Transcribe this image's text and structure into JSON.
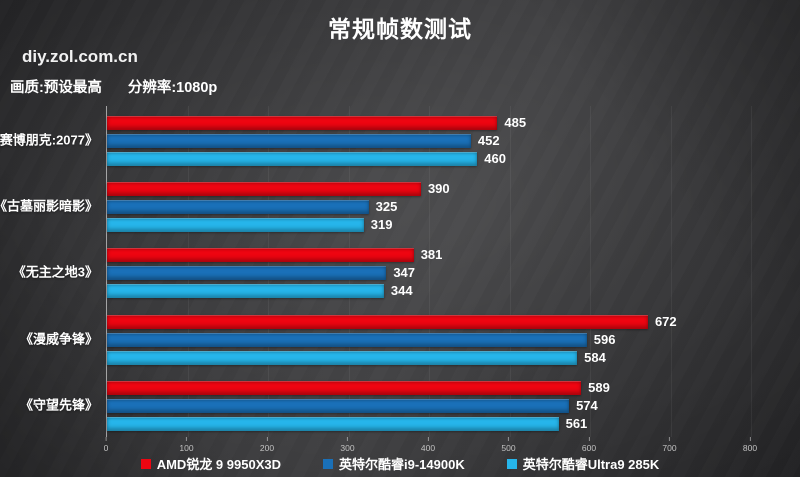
{
  "page": {
    "title": "常规帧数测试",
    "watermark": "diy.zol.com.cn",
    "settings": {
      "quality": "画质:预设最高",
      "resolution": "分辨率:1080p"
    }
  },
  "chart_data": {
    "type": "bar",
    "orientation": "horizontal",
    "title": "常规帧数测试",
    "categories": [
      "《赛博朋克:2077》",
      "《古墓丽影暗影》",
      "《无主之地3》",
      "《漫威争锋》",
      "《守望先锋》"
    ],
    "series": [
      {
        "name": "AMD锐龙 9 9950X3D",
        "color": "#ee0511",
        "values": [
          485,
          390,
          381,
          672,
          589
        ]
      },
      {
        "name": "英特尔酷睿i9-14900K",
        "color": "#1a70b8",
        "values": [
          452,
          325,
          347,
          596,
          574
        ]
      },
      {
        "name": "英特尔酷睿Ultra9 285K",
        "color": "#26b5ea",
        "values": [
          460,
          319,
          344,
          584,
          561
        ]
      }
    ],
    "xlim": [
      0,
      800
    ],
    "x_ticks": [
      0,
      100,
      200,
      300,
      400,
      500,
      600,
      700,
      800
    ],
    "grid": "vertical-faint",
    "legend_position": "bottom",
    "value_labels": "outside-end"
  }
}
